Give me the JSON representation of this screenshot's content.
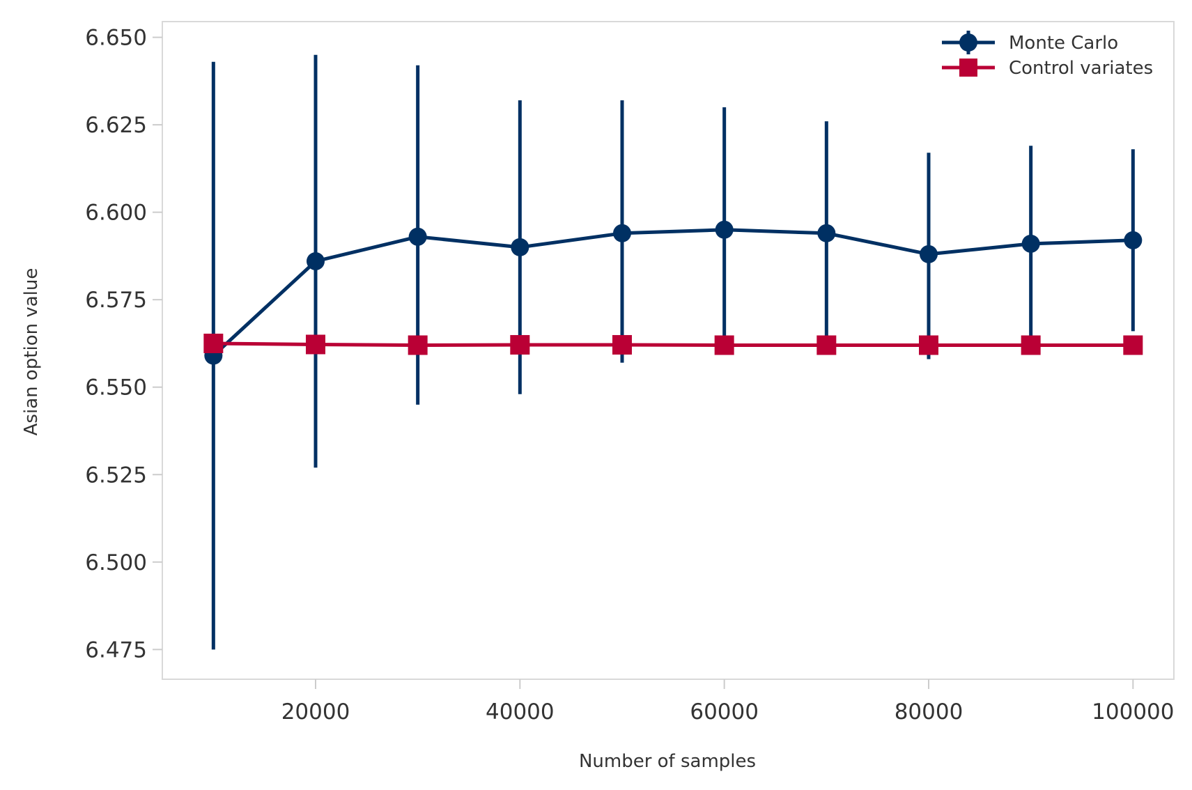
{
  "chart_data": {
    "type": "line",
    "title": "",
    "xlabel": "Number of samples",
    "ylabel": "Asian option value",
    "xlim": [
      5000,
      104000
    ],
    "ylim": [
      6.4665,
      6.6545
    ],
    "xticks": [
      20000,
      40000,
      60000,
      80000,
      100000
    ],
    "xtick_labels": [
      "20000",
      "40000",
      "60000",
      "80000",
      "100000"
    ],
    "yticks": [
      6.475,
      6.5,
      6.525,
      6.55,
      6.575,
      6.6,
      6.625,
      6.65
    ],
    "ytick_labels": [
      "6.475",
      "6.500",
      "6.525",
      "6.550",
      "6.575",
      "6.600",
      "6.625",
      "6.650"
    ],
    "grid": false,
    "legend_position": "top-right",
    "x": [
      10000,
      20000,
      30000,
      40000,
      50000,
      60000,
      70000,
      80000,
      90000,
      100000
    ],
    "series": [
      {
        "name": "Monte Carlo",
        "color": "#003063",
        "marker": "circle",
        "values": [
          6.559,
          6.586,
          6.593,
          6.59,
          6.594,
          6.595,
          6.594,
          6.588,
          6.591,
          6.592
        ],
        "error_low": [
          6.475,
          6.527,
          6.545,
          6.548,
          6.557,
          6.562,
          6.563,
          6.558,
          6.563,
          6.566
        ],
        "error_high": [
          6.643,
          6.645,
          6.642,
          6.632,
          6.632,
          6.63,
          6.626,
          6.617,
          6.619,
          6.618
        ]
      },
      {
        "name": "Control variates",
        "color": "#BA0035",
        "marker": "square",
        "values": [
          6.5625,
          6.5622,
          6.562,
          6.5621,
          6.5621,
          6.562,
          6.562,
          6.562,
          6.562,
          6.562
        ]
      }
    ]
  }
}
